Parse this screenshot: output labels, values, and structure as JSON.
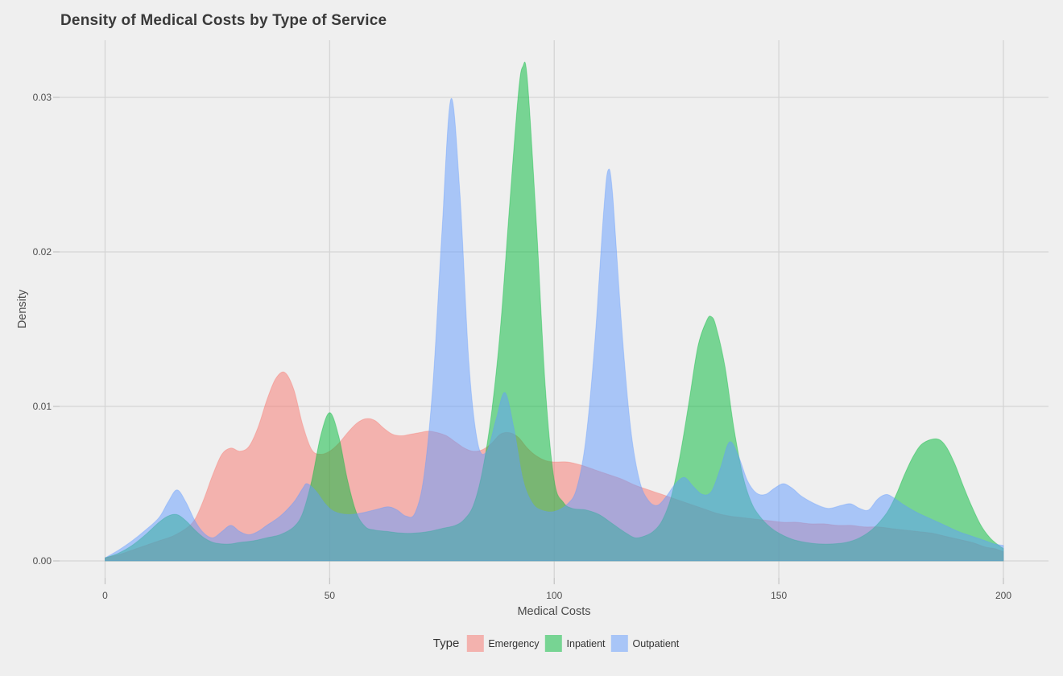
{
  "chart_data": {
    "type": "area",
    "subtype": "density",
    "title": "Density of Medical Costs by Type of Service",
    "xlabel": "Medical Costs",
    "ylabel": "Density",
    "legend_title": "Type",
    "legend_position": "bottom",
    "grid": "on",
    "background_color": "#EFEFEF",
    "gridline_color": "#D5D5D5",
    "tick_color": "#C6C6C6",
    "xlim": [
      0,
      200
    ],
    "ylim": [
      0,
      0.034
    ],
    "x_ticks": [
      0,
      50,
      100,
      150,
      200
    ],
    "y_ticks": [
      "0.00",
      "0.01",
      "0.02",
      "0.03"
    ],
    "y_tick_values": [
      0,
      0.01,
      0.02,
      0.03
    ],
    "fill_opacity": 0.5,
    "series": [
      {
        "name": "Emergency",
        "color": "#F8766D",
        "points": [
          [
            0,
            0.0002
          ],
          [
            3,
            0.0004
          ],
          [
            6,
            0.0007
          ],
          [
            9,
            0.001
          ],
          [
            12,
            0.0013
          ],
          [
            15,
            0.0016
          ],
          [
            18,
            0.0021
          ],
          [
            20,
            0.0027
          ],
          [
            22,
            0.004
          ],
          [
            24,
            0.0056
          ],
          [
            26,
            0.0069
          ],
          [
            28,
            0.0073
          ],
          [
            30,
            0.0071
          ],
          [
            32,
            0.0074
          ],
          [
            34,
            0.0086
          ],
          [
            36,
            0.0104
          ],
          [
            38,
            0.0118
          ],
          [
            40,
            0.0122
          ],
          [
            42,
            0.0111
          ],
          [
            44,
            0.0088
          ],
          [
            46,
            0.0072
          ],
          [
            48,
            0.0069
          ],
          [
            50,
            0.0071
          ],
          [
            52,
            0.0076
          ],
          [
            54,
            0.0083
          ],
          [
            56,
            0.0089
          ],
          [
            58,
            0.0092
          ],
          [
            60,
            0.0091
          ],
          [
            62,
            0.0086
          ],
          [
            64,
            0.0082
          ],
          [
            66,
            0.0081
          ],
          [
            68,
            0.0082
          ],
          [
            70,
            0.0083
          ],
          [
            72,
            0.0084
          ],
          [
            74,
            0.0083
          ],
          [
            76,
            0.0081
          ],
          [
            78,
            0.0077
          ],
          [
            80,
            0.0073
          ],
          [
            82,
            0.0071
          ],
          [
            84,
            0.0072
          ],
          [
            86,
            0.0076
          ],
          [
            88,
            0.0082
          ],
          [
            90,
            0.0083
          ],
          [
            92,
            0.008
          ],
          [
            94,
            0.0073
          ],
          [
            96,
            0.0068
          ],
          [
            98,
            0.0065
          ],
          [
            100,
            0.0064
          ],
          [
            103,
            0.0064
          ],
          [
            106,
            0.0062
          ],
          [
            109,
            0.0059
          ],
          [
            112,
            0.0056
          ],
          [
            115,
            0.0053
          ],
          [
            118,
            0.0049
          ],
          [
            121,
            0.0046
          ],
          [
            124,
            0.0043
          ],
          [
            127,
            0.004
          ],
          [
            130,
            0.0037
          ],
          [
            133,
            0.0034
          ],
          [
            136,
            0.0031
          ],
          [
            139,
            0.0029
          ],
          [
            142,
            0.0028
          ],
          [
            145,
            0.0027
          ],
          [
            148,
            0.0026
          ],
          [
            151,
            0.0025
          ],
          [
            154,
            0.0025
          ],
          [
            157,
            0.0024
          ],
          [
            160,
            0.0024
          ],
          [
            163,
            0.0023
          ],
          [
            166,
            0.0023
          ],
          [
            169,
            0.0022
          ],
          [
            172,
            0.0022
          ],
          [
            175,
            0.0021
          ],
          [
            178,
            0.002
          ],
          [
            181,
            0.0019
          ],
          [
            184,
            0.0018
          ],
          [
            187,
            0.0016
          ],
          [
            190,
            0.0014
          ],
          [
            193,
            0.0012
          ],
          [
            196,
            0.0009
          ],
          [
            198,
            0.0008
          ],
          [
            200,
            0.0006
          ]
        ]
      },
      {
        "name": "Inpatient",
        "color": "#00BA38",
        "points": [
          [
            0,
            0.0002
          ],
          [
            3,
            0.0005
          ],
          [
            6,
            0.001
          ],
          [
            9,
            0.0017
          ],
          [
            12,
            0.0025
          ],
          [
            14,
            0.0029
          ],
          [
            16,
            0.003
          ],
          [
            18,
            0.0026
          ],
          [
            20,
            0.002
          ],
          [
            22,
            0.0015
          ],
          [
            24,
            0.0012
          ],
          [
            26,
            0.0011
          ],
          [
            28,
            0.0011
          ],
          [
            30,
            0.0012
          ],
          [
            33,
            0.0013
          ],
          [
            36,
            0.0015
          ],
          [
            39,
            0.0017
          ],
          [
            42,
            0.0022
          ],
          [
            44,
            0.0031
          ],
          [
            46,
            0.0052
          ],
          [
            48,
            0.0081
          ],
          [
            50,
            0.0096
          ],
          [
            52,
            0.0081
          ],
          [
            54,
            0.0052
          ],
          [
            56,
            0.0031
          ],
          [
            58,
            0.0022
          ],
          [
            60,
            0.002
          ],
          [
            63,
            0.0019
          ],
          [
            66,
            0.0018
          ],
          [
            69,
            0.0018
          ],
          [
            72,
            0.0019
          ],
          [
            75,
            0.0021
          ],
          [
            78,
            0.0023
          ],
          [
            80,
            0.0027
          ],
          [
            82,
            0.0036
          ],
          [
            84,
            0.0058
          ],
          [
            86,
            0.0095
          ],
          [
            88,
            0.015
          ],
          [
            90,
            0.0228
          ],
          [
            92,
            0.0302
          ],
          [
            93,
            0.032
          ],
          [
            94,
            0.0312
          ],
          [
            96,
            0.022
          ],
          [
            98,
            0.0113
          ],
          [
            100,
            0.0052
          ],
          [
            102,
            0.0038
          ],
          [
            104,
            0.0034
          ],
          [
            107,
            0.0033
          ],
          [
            110,
            0.003
          ],
          [
            113,
            0.0024
          ],
          [
            116,
            0.0018
          ],
          [
            118,
            0.0015
          ],
          [
            120,
            0.0016
          ],
          [
            122,
            0.0019
          ],
          [
            124,
            0.0026
          ],
          [
            126,
            0.0041
          ],
          [
            128,
            0.0068
          ],
          [
            130,
            0.0103
          ],
          [
            132,
            0.0139
          ],
          [
            134,
            0.0156
          ],
          [
            135,
            0.0158
          ],
          [
            136,
            0.0152
          ],
          [
            138,
            0.0126
          ],
          [
            140,
            0.0086
          ],
          [
            142,
            0.0055
          ],
          [
            144,
            0.0037
          ],
          [
            146,
            0.0028
          ],
          [
            148,
            0.0022
          ],
          [
            150,
            0.0018
          ],
          [
            153,
            0.0014
          ],
          [
            156,
            0.0012
          ],
          [
            159,
            0.0011
          ],
          [
            162,
            0.0011
          ],
          [
            165,
            0.0012
          ],
          [
            168,
            0.0015
          ],
          [
            171,
            0.0021
          ],
          [
            174,
            0.0031
          ],
          [
            176,
            0.0042
          ],
          [
            178,
            0.0056
          ],
          [
            180,
            0.0068
          ],
          [
            182,
            0.0076
          ],
          [
            185,
            0.0079
          ],
          [
            187,
            0.0075
          ],
          [
            189,
            0.0064
          ],
          [
            191,
            0.0049
          ],
          [
            193,
            0.0035
          ],
          [
            195,
            0.0023
          ],
          [
            197,
            0.0015
          ],
          [
            199,
            0.001
          ],
          [
            200,
            0.0008
          ]
        ]
      },
      {
        "name": "Outpatient",
        "color": "#619CFF",
        "points": [
          [
            0,
            0.0002
          ],
          [
            3,
            0.0007
          ],
          [
            6,
            0.0013
          ],
          [
            9,
            0.002
          ],
          [
            12,
            0.0028
          ],
          [
            14,
            0.0038
          ],
          [
            16,
            0.0046
          ],
          [
            18,
            0.0038
          ],
          [
            20,
            0.0026
          ],
          [
            22,
            0.0018
          ],
          [
            24,
            0.0015
          ],
          [
            26,
            0.0019
          ],
          [
            28,
            0.0023
          ],
          [
            30,
            0.0019
          ],
          [
            32,
            0.0017
          ],
          [
            34,
            0.0019
          ],
          [
            36,
            0.0023
          ],
          [
            39,
            0.0029
          ],
          [
            42,
            0.0038
          ],
          [
            44,
            0.0047
          ],
          [
            45,
            0.005
          ],
          [
            47,
            0.0045
          ],
          [
            49,
            0.0037
          ],
          [
            51,
            0.0032
          ],
          [
            54,
            0.003
          ],
          [
            57,
            0.0031
          ],
          [
            60,
            0.0033
          ],
          [
            63,
            0.0035
          ],
          [
            65,
            0.0033
          ],
          [
            67,
            0.0029
          ],
          [
            69,
            0.0031
          ],
          [
            71,
            0.0055
          ],
          [
            73,
            0.0115
          ],
          [
            75,
            0.0213
          ],
          [
            77,
            0.0299
          ],
          [
            79,
            0.0238
          ],
          [
            81,
            0.0128
          ],
          [
            83,
            0.0076
          ],
          [
            85,
            0.0071
          ],
          [
            87,
            0.0091
          ],
          [
            89,
            0.0109
          ],
          [
            91,
            0.0086
          ],
          [
            93,
            0.0053
          ],
          [
            95,
            0.0038
          ],
          [
            97,
            0.0033
          ],
          [
            100,
            0.0032
          ],
          [
            103,
            0.0037
          ],
          [
            105,
            0.0047
          ],
          [
            107,
            0.0078
          ],
          [
            109,
            0.014
          ],
          [
            111,
            0.0226
          ],
          [
            112,
            0.0253
          ],
          [
            113,
            0.0237
          ],
          [
            115,
            0.0152
          ],
          [
            117,
            0.0086
          ],
          [
            119,
            0.0052
          ],
          [
            121,
            0.0039
          ],
          [
            123,
            0.0036
          ],
          [
            125,
            0.0042
          ],
          [
            127,
            0.005
          ],
          [
            129,
            0.0054
          ],
          [
            131,
            0.0048
          ],
          [
            133,
            0.0043
          ],
          [
            135,
            0.0045
          ],
          [
            137,
            0.006
          ],
          [
            139,
            0.0077
          ],
          [
            141,
            0.0068
          ],
          [
            143,
            0.0052
          ],
          [
            145,
            0.0044
          ],
          [
            147,
            0.0043
          ],
          [
            149,
            0.0047
          ],
          [
            151,
            0.005
          ],
          [
            153,
            0.0047
          ],
          [
            155,
            0.0042
          ],
          [
            158,
            0.0037
          ],
          [
            161,
            0.0034
          ],
          [
            164,
            0.0036
          ],
          [
            166,
            0.0037
          ],
          [
            168,
            0.0034
          ],
          [
            170,
            0.0033
          ],
          [
            172,
            0.004
          ],
          [
            174,
            0.0043
          ],
          [
            176,
            0.004
          ],
          [
            178,
            0.0036
          ],
          [
            181,
            0.0031
          ],
          [
            184,
            0.0027
          ],
          [
            187,
            0.0023
          ],
          [
            190,
            0.0019
          ],
          [
            193,
            0.0016
          ],
          [
            196,
            0.0013
          ],
          [
            198,
            0.0011
          ],
          [
            200,
            0.001
          ]
        ]
      }
    ]
  }
}
